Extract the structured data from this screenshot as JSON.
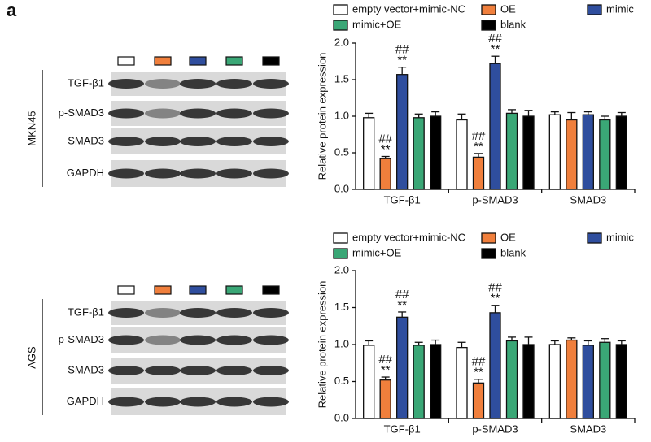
{
  "panel_label": "a",
  "blots": [
    {
      "cell_line": "MKN45",
      "proteins": [
        "TGF-β1",
        "p-SMAD3",
        "SMAD3",
        "GAPDH"
      ]
    },
    {
      "cell_line": "AGS",
      "proteins": [
        "TGF-β1",
        "p-SMAD3",
        "SMAD3",
        "GAPDH"
      ]
    }
  ],
  "chart_data": [
    {
      "type": "bar",
      "y_label": "Relative protein expression",
      "categories": [
        "TGF-β1",
        "p-SMAD3",
        "SMAD3"
      ],
      "ylim": [
        0,
        2
      ],
      "yticks": [
        {
          "value": 0,
          "label": "0.0"
        },
        0.5,
        {
          "value": 1,
          "label": "1.0"
        },
        1.5,
        {
          "value": 2,
          "label": "2.0"
        }
      ],
      "series": [
        {
          "name": "empty vector+mimic-NC",
          "color": "#ffffff",
          "values": [
            0.98,
            0.95,
            1.02
          ],
          "errors": [
            0.06,
            0.08,
            0.04
          ],
          "significance": [
            null,
            null,
            null
          ]
        },
        {
          "name": "OE",
          "color": "#f07f3c",
          "values": [
            0.42,
            0.44,
            0.95
          ],
          "errors": [
            0.03,
            0.05,
            0.1
          ],
          "significance": [
            [
              "##",
              "**"
            ],
            [
              "##",
              "**"
            ],
            null
          ]
        },
        {
          "name": "mimic",
          "color": "#2f4e9e",
          "values": [
            1.57,
            1.72,
            1.02
          ],
          "errors": [
            0.1,
            0.1,
            0.04
          ],
          "significance": [
            [
              "##",
              "**"
            ],
            [
              "##",
              "**"
            ],
            null
          ]
        },
        {
          "name": "mimic+OE",
          "color": "#3aa776",
          "values": [
            0.98,
            1.04,
            0.95
          ],
          "errors": [
            0.05,
            0.05,
            0.05
          ],
          "significance": [
            null,
            null,
            null
          ]
        },
        {
          "name": "blank",
          "color": "#000000",
          "values": [
            1.0,
            1.0,
            1.0
          ],
          "errors": [
            0.06,
            0.08,
            0.05
          ],
          "significance": [
            null,
            null,
            null
          ]
        }
      ]
    },
    {
      "type": "bar",
      "y_label": "Relative protein expression",
      "categories": [
        "TGF-β1",
        "p-SMAD3",
        "SMAD3"
      ],
      "ylim": [
        0,
        2
      ],
      "yticks": [
        {
          "value": 0,
          "label": "0.0"
        },
        0.5,
        {
          "value": 1,
          "label": "1.0"
        },
        1.5,
        {
          "value": 2,
          "label": "2.0"
        }
      ],
      "series": [
        {
          "name": "empty vector+mimic-NC",
          "color": "#ffffff",
          "values": [
            0.99,
            0.96,
            1.0
          ],
          "errors": [
            0.06,
            0.07,
            0.05
          ],
          "significance": [
            null,
            null,
            null
          ]
        },
        {
          "name": "OE",
          "color": "#f07f3c",
          "values": [
            0.52,
            0.48,
            1.06
          ],
          "errors": [
            0.04,
            0.05,
            0.03
          ],
          "significance": [
            [
              "##",
              "**"
            ],
            [
              "##",
              "**"
            ],
            null
          ]
        },
        {
          "name": "mimic",
          "color": "#2f4e9e",
          "values": [
            1.37,
            1.43,
            0.99
          ],
          "errors": [
            0.07,
            0.1,
            0.06
          ],
          "significance": [
            [
              "##",
              "**"
            ],
            [
              "##",
              "**"
            ],
            null
          ]
        },
        {
          "name": "mimic+OE",
          "color": "#3aa776",
          "values": [
            0.99,
            1.05,
            1.03
          ],
          "errors": [
            0.04,
            0.05,
            0.05
          ],
          "significance": [
            null,
            null,
            null
          ]
        },
        {
          "name": "blank",
          "color": "#000000",
          "values": [
            1.0,
            1.0,
            1.0
          ],
          "errors": [
            0.06,
            0.1,
            0.05
          ],
          "significance": [
            null,
            null,
            null
          ]
        }
      ]
    }
  ]
}
